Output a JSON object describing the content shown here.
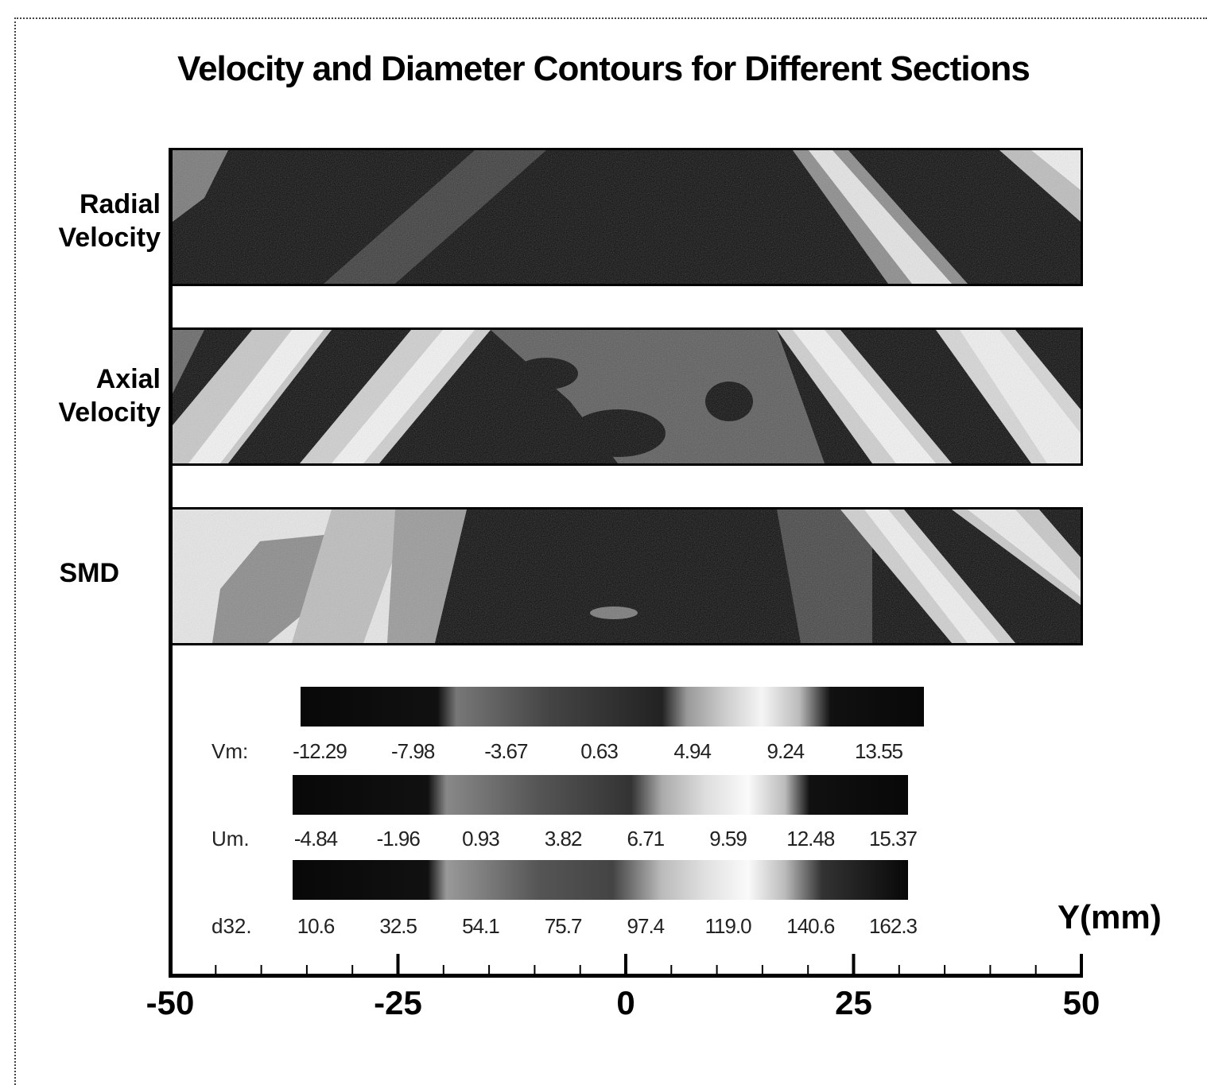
{
  "chart_data": {
    "type": "heatmap",
    "title": "Velocity and Diameter Contours for Different Sections",
    "xlabel": "Y(mm)",
    "xlim": [
      -50,
      50
    ],
    "x_ticks": [
      -50,
      -25,
      0,
      25,
      50
    ],
    "grid": false,
    "rows": [
      {
        "label": "Radial\nVelocity",
        "label_lines": [
          "Radial",
          "Velocity"
        ]
      },
      {
        "label": "Axial\nVelocity",
        "label_lines": [
          "Axial",
          "Velocity"
        ]
      },
      {
        "label": "SMD",
        "label_lines": [
          "SMD"
        ]
      }
    ],
    "colorbars": [
      {
        "name": "Vm:",
        "values": [
          "-12.29",
          "-7.98",
          "-3.67",
          "0.63",
          "4.94",
          "9.24",
          "13.55"
        ]
      },
      {
        "name": "Um.",
        "values": [
          "-4.84",
          "-1.96",
          "0.93",
          "3.82",
          "6.71",
          "9.59",
          "12.48",
          "15.37"
        ]
      },
      {
        "name": "d32.",
        "values": [
          "10.6",
          "32.5",
          "54.1",
          "75.7",
          "97.4",
          "119.0",
          "140.6",
          "162.3"
        ]
      }
    ]
  },
  "colors": {
    "background": "#ffffff",
    "dark": "#0a0a0a",
    "light": "#f2f2f2"
  }
}
